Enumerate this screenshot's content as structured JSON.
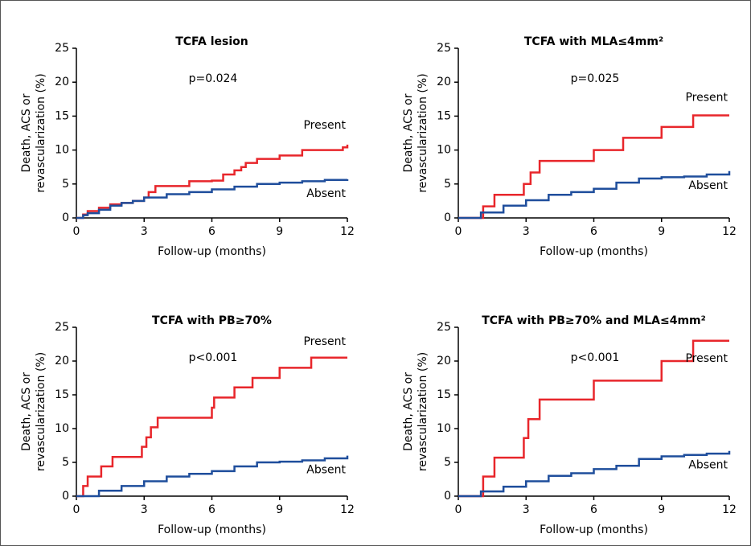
{
  "chart_data": [
    {
      "type": "step",
      "title": "TCFA lesion",
      "annotation": "p=0.024",
      "x_label": "Follow-up (months)",
      "y_label": [
        "Death, ACS or",
        "revascularization (%)"
      ],
      "xlim": [
        0,
        12
      ],
      "ylim": [
        0,
        25
      ],
      "xticks": [
        0,
        3,
        6,
        9,
        12
      ],
      "yticks": [
        0,
        5,
        10,
        15,
        20,
        25
      ],
      "series": [
        {
          "name": "Present",
          "color": "#e8262b",
          "x": [
            0,
            0.3,
            0.5,
            1,
            1.5,
            2,
            2.5,
            3,
            3.2,
            3.5,
            5,
            6,
            6.5,
            7,
            7.3,
            7.5,
            8,
            9,
            10,
            11.8,
            12
          ],
          "values": [
            0,
            0.5,
            1,
            1.5,
            2,
            2.2,
            2.5,
            3,
            3.8,
            4.7,
            5.4,
            5.5,
            6.4,
            7,
            7.5,
            8.1,
            8.7,
            9.2,
            10,
            10.4,
            10.8
          ]
        },
        {
          "name": "Absent",
          "color": "#1f4e9c",
          "x": [
            0,
            0.3,
            0.5,
            1,
            1.5,
            2,
            2.5,
            3,
            4,
            5,
            6,
            7,
            8,
            9,
            10,
            11,
            12
          ],
          "values": [
            0,
            0.4,
            0.7,
            1.2,
            1.8,
            2.2,
            2.5,
            3,
            3.5,
            3.8,
            4.2,
            4.6,
            5,
            5.2,
            5.4,
            5.6,
            5.7
          ]
        }
      ]
    },
    {
      "type": "step",
      "title": "TCFA with MLA≤4mm²",
      "annotation": "p=0.025",
      "x_label": "Follow-up (months)",
      "y_label": [
        "Death, ACS or",
        "revascularization (%)"
      ],
      "xlim": [
        0,
        12
      ],
      "ylim": [
        0,
        25
      ],
      "xticks": [
        0,
        3,
        6,
        9,
        12
      ],
      "yticks": [
        0,
        5,
        10,
        15,
        20,
        25
      ],
      "series": [
        {
          "name": "Present",
          "color": "#e8262b",
          "x": [
            0,
            1.1,
            1.6,
            2.9,
            3.2,
            3.6,
            6,
            7.3,
            9,
            10.4,
            12
          ],
          "values": [
            0,
            1.7,
            3.4,
            5,
            6.7,
            8.4,
            10,
            11.8,
            13.4,
            15.1,
            15.1
          ]
        },
        {
          "name": "Absent",
          "color": "#1f4e9c",
          "x": [
            0,
            1,
            2,
            3,
            4,
            5,
            6,
            7,
            8,
            9,
            10,
            11,
            12
          ],
          "values": [
            0,
            0.8,
            1.8,
            2.6,
            3.4,
            3.8,
            4.3,
            5.2,
            5.8,
            6,
            6.1,
            6.4,
            6.9
          ]
        }
      ]
    },
    {
      "type": "step",
      "title": "TCFA with PB≥70%",
      "annotation": "p<0.001",
      "x_label": "Follow-up (months)",
      "y_label": [
        "Death, ACS or",
        "revascularization (%)"
      ],
      "xlim": [
        0,
        12
      ],
      "ylim": [
        0,
        25
      ],
      "xticks": [
        0,
        3,
        6,
        9,
        12
      ],
      "yticks": [
        0,
        5,
        10,
        15,
        20,
        25
      ],
      "series": [
        {
          "name": "Present",
          "color": "#e8262b",
          "x": [
            0,
            0.3,
            0.5,
            1.1,
            1.6,
            2.9,
            3.1,
            3.3,
            3.6,
            6,
            6.1,
            7,
            7.8,
            9,
            10.4,
            12
          ],
          "values": [
            0,
            1.5,
            2.9,
            4.4,
            5.8,
            7.3,
            8.7,
            10.2,
            11.6,
            13.1,
            14.6,
            16.1,
            17.5,
            19,
            20.5,
            20.5
          ]
        },
        {
          "name": "Absent",
          "color": "#1f4e9c",
          "x": [
            0,
            1,
            2,
            3,
            4,
            5,
            6,
            7,
            8,
            9,
            10,
            11,
            12
          ],
          "values": [
            0,
            0.8,
            1.5,
            2.2,
            2.9,
            3.3,
            3.7,
            4.4,
            5,
            5.1,
            5.3,
            5.6,
            6
          ]
        }
      ]
    },
    {
      "type": "step",
      "title": "TCFA with PB≥70% and MLA≤4mm²",
      "annotation": "p<0.001",
      "x_label": "Follow-up (months)",
      "y_label": [
        "Death, ACS or",
        "revascularization (%)"
      ],
      "xlim": [
        0,
        12
      ],
      "ylim": [
        0,
        25
      ],
      "xticks": [
        0,
        3,
        6,
        9,
        12
      ],
      "yticks": [
        0,
        5,
        10,
        15,
        20,
        25
      ],
      "series": [
        {
          "name": "Present",
          "color": "#e8262b",
          "x": [
            0,
            1.1,
            1.6,
            2.9,
            3.1,
            3.6,
            6,
            9,
            10.4,
            12
          ],
          "values": [
            0,
            2.9,
            5.7,
            8.6,
            11.4,
            14.3,
            17.1,
            20,
            23,
            23
          ]
        },
        {
          "name": "Absent",
          "color": "#1f4e9c",
          "x": [
            0,
            1,
            2,
            3,
            4,
            5,
            6,
            7,
            8,
            9,
            10,
            11,
            12
          ],
          "values": [
            0,
            0.7,
            1.4,
            2.2,
            3,
            3.4,
            4,
            4.5,
            5.5,
            5.9,
            6.1,
            6.3,
            6.7
          ]
        }
      ]
    }
  ]
}
